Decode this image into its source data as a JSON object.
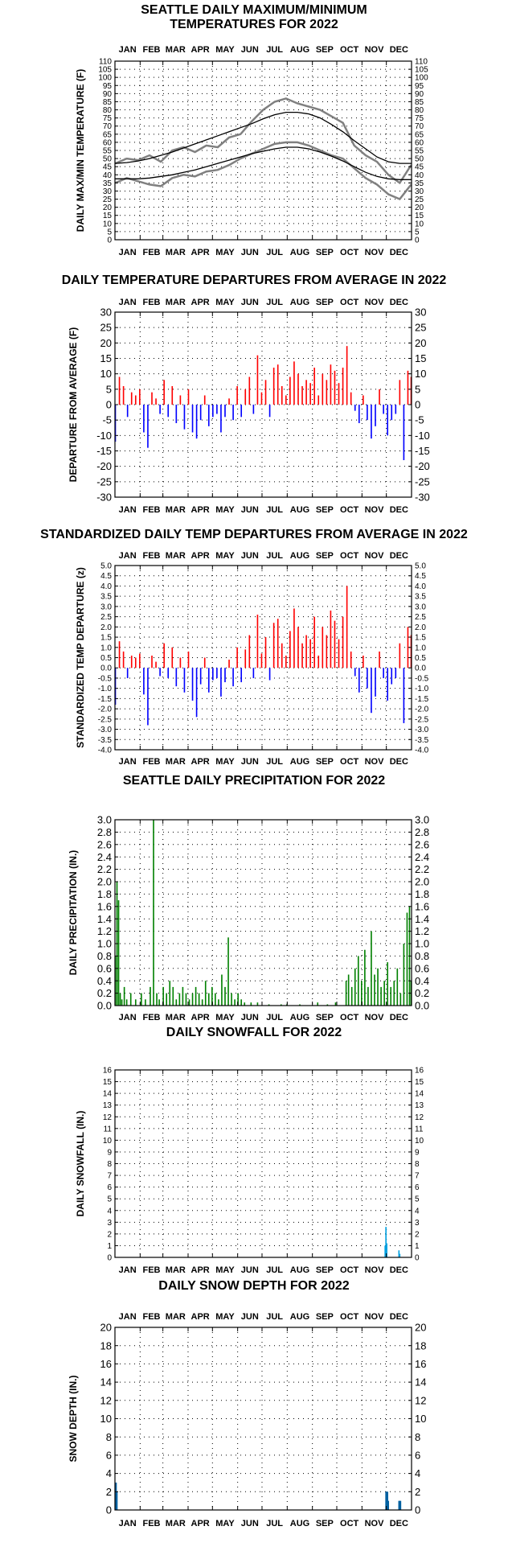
{
  "chart_data": [
    {
      "type": "line",
      "title_lines": [
        "SEATTLE DAILY MAXIMUM/MINIMUM",
        "TEMPERATURES FOR 2022"
      ],
      "ylabel": "DAILY MAX/MIN TEMPERATURE (F)",
      "months": [
        "JAN",
        "FEB",
        "MAR",
        "APR",
        "MAY",
        "JUN",
        "JUL",
        "AUG",
        "SEP",
        "OCT",
        "NOV",
        "DEC"
      ],
      "ylim": [
        0,
        110
      ],
      "yticks": [
        0,
        5,
        10,
        15,
        20,
        25,
        30,
        35,
        40,
        45,
        50,
        55,
        60,
        65,
        70,
        75,
        80,
        85,
        90,
        95,
        100,
        105,
        110
      ],
      "colors": {
        "observed": "#808080",
        "normal": "#000000"
      },
      "series": [
        {
          "role": "observed_max",
          "x": [
            1,
            15,
            29,
            43,
            57,
            71,
            85,
            99,
            113,
            127,
            141,
            155,
            169,
            183,
            197,
            211,
            225,
            239,
            253,
            267,
            281,
            295,
            309,
            323,
            337,
            351,
            365
          ],
          "values": [
            47,
            50,
            49,
            52,
            48,
            55,
            57,
            54,
            58,
            57,
            63,
            65,
            73,
            80,
            85,
            87,
            84,
            82,
            80,
            76,
            72,
            58,
            52,
            48,
            40,
            35,
            46
          ]
        },
        {
          "role": "observed_min",
          "x": [
            1,
            15,
            29,
            43,
            57,
            71,
            85,
            99,
            113,
            127,
            141,
            155,
            169,
            183,
            197,
            211,
            225,
            239,
            253,
            267,
            281,
            295,
            309,
            323,
            337,
            351,
            365
          ],
          "values": [
            35,
            38,
            36,
            34,
            33,
            38,
            40,
            39,
            42,
            43,
            46,
            50,
            53,
            56,
            59,
            60,
            60,
            58,
            55,
            52,
            50,
            44,
            38,
            34,
            28,
            25,
            34
          ]
        },
        {
          "role": "normal_max",
          "x": [
            1,
            15,
            29,
            43,
            57,
            71,
            85,
            99,
            113,
            127,
            141,
            155,
            169,
            183,
            197,
            211,
            225,
            239,
            253,
            267,
            281,
            295,
            309,
            323,
            337,
            351,
            365
          ],
          "values": [
            47,
            47.5,
            48.5,
            50,
            52,
            54,
            56.5,
            59,
            61.5,
            64,
            66.5,
            69,
            71.5,
            74.5,
            77,
            78.5,
            78.5,
            77.5,
            75,
            71,
            66.5,
            61,
            56,
            51,
            48,
            47,
            47
          ]
        },
        {
          "role": "normal_min",
          "x": [
            1,
            15,
            29,
            43,
            57,
            71,
            85,
            99,
            113,
            127,
            141,
            155,
            169,
            183,
            197,
            211,
            225,
            239,
            253,
            267,
            281,
            295,
            309,
            323,
            337,
            351,
            365
          ],
          "values": [
            37.5,
            37.5,
            37.5,
            38,
            39,
            40,
            41.5,
            43,
            45,
            47,
            49,
            51,
            53,
            54.5,
            56,
            57,
            57,
            56,
            54,
            51.5,
            48.5,
            45,
            41.5,
            39,
            37.5,
            37,
            37
          ]
        }
      ]
    },
    {
      "type": "bar",
      "title": "DAILY TEMPERATURE DEPARTURES FROM AVERAGE IN 2022",
      "ylabel": "DEPARTURE FROM AVERAGE (F)",
      "months": [
        "JAN",
        "FEB",
        "MAR",
        "APR",
        "MAY",
        "JUN",
        "JUL",
        "AUG",
        "SEP",
        "OCT",
        "NOV",
        "DEC"
      ],
      "ylim": [
        -30,
        30
      ],
      "yticks": [
        -30,
        -25,
        -20,
        -15,
        -10,
        -5,
        0,
        5,
        10,
        15,
        20,
        25,
        30
      ],
      "colors": {
        "positive": "#ff0000",
        "negative": "#0000ff"
      },
      "x": [
        1,
        6,
        11,
        16,
        21,
        26,
        31,
        36,
        41,
        46,
        51,
        56,
        61,
        66,
        71,
        76,
        81,
        86,
        91,
        96,
        101,
        106,
        111,
        116,
        121,
        126,
        131,
        136,
        141,
        146,
        151,
        156,
        161,
        166,
        171,
        176,
        181,
        186,
        191,
        196,
        201,
        206,
        211,
        216,
        221,
        226,
        231,
        236,
        241,
        246,
        251,
        256,
        261,
        266,
        271,
        276,
        281,
        286,
        291,
        296,
        301,
        306,
        311,
        316,
        321,
        326,
        331,
        336,
        341,
        346,
        351,
        356,
        361,
        365
      ],
      "values": [
        -12,
        9,
        6,
        -4,
        4,
        3,
        5,
        -9,
        -14,
        4,
        2,
        -3,
        8,
        -4,
        6,
        -6,
        3,
        -8,
        5,
        -9,
        -11,
        -5,
        3,
        -7,
        -4,
        -3,
        -9,
        -4,
        2,
        -5,
        6,
        -4,
        5,
        9,
        -3,
        16,
        4,
        8,
        -4,
        12,
        13,
        6,
        3,
        9,
        14,
        10,
        6,
        8,
        7,
        12,
        3,
        10,
        8,
        13,
        11,
        7,
        12,
        19,
        4,
        -2,
        -6,
        3,
        -5,
        -11,
        -7,
        5,
        -3,
        -10,
        -5,
        -3,
        8,
        -18,
        11,
        9
      ]
    },
    {
      "type": "bar",
      "title": "STANDARDIZED DAILY TEMP DEPARTURES FROM AVERAGE IN 2022",
      "ylabel": "STANDARDIZED TEMP DEPARTURE (z)",
      "months": [
        "JAN",
        "FEB",
        "MAR",
        "APR",
        "MAY",
        "JUN",
        "JUL",
        "AUG",
        "SEP",
        "OCT",
        "NOV",
        "DEC"
      ],
      "ylim": [
        -4,
        5
      ],
      "yticks": [
        -4.0,
        -3.5,
        -3.0,
        -2.5,
        -2.0,
        -1.5,
        -1.0,
        -0.5,
        0.0,
        0.5,
        1.0,
        1.5,
        2.0,
        2.5,
        3.0,
        3.5,
        4.0,
        4.5,
        5.0
      ],
      "colors": {
        "positive": "#ff0000",
        "negative": "#0000ff"
      },
      "x": [
        1,
        6,
        11,
        16,
        21,
        26,
        31,
        36,
        41,
        46,
        51,
        56,
        61,
        66,
        71,
        76,
        81,
        86,
        91,
        96,
        101,
        106,
        111,
        116,
        121,
        126,
        131,
        136,
        141,
        146,
        151,
        156,
        161,
        166,
        171,
        176,
        181,
        186,
        191,
        196,
        201,
        206,
        211,
        216,
        221,
        226,
        231,
        236,
        241,
        246,
        251,
        256,
        261,
        266,
        271,
        276,
        281,
        286,
        291,
        296,
        301,
        306,
        311,
        316,
        321,
        326,
        331,
        336,
        341,
        346,
        351,
        356,
        361,
        365
      ],
      "values": [
        -1.8,
        1.3,
        0.8,
        -0.5,
        0.6,
        0.5,
        0.7,
        -1.3,
        -2.8,
        0.6,
        0.3,
        -0.4,
        1.2,
        -0.5,
        1.0,
        -0.9,
        0.5,
        -1.2,
        0.8,
        -1.6,
        -2.4,
        -0.8,
        0.5,
        -1.2,
        -0.6,
        -0.5,
        -1.4,
        -0.7,
        0.4,
        -0.9,
        1.0,
        -0.7,
        0.9,
        1.6,
        -0.5,
        2.6,
        0.7,
        1.5,
        -0.6,
        2.2,
        2.4,
        1.2,
        0.6,
        1.8,
        2.9,
        2.0,
        1.2,
        1.6,
        1.4,
        2.5,
        0.6,
        2.0,
        1.6,
        2.8,
        2.3,
        1.4,
        2.5,
        4.0,
        0.8,
        -0.4,
        -1.2,
        0.6,
        -1.0,
        -2.2,
        -1.4,
        0.8,
        -0.5,
        -1.6,
        -0.8,
        -0.5,
        1.2,
        -2.7,
        2.0,
        1.6
      ]
    },
    {
      "type": "bar",
      "title": "SEATTLE DAILY PRECIPITATION FOR 2022",
      "ylabel": "DAILY PRECIPITATION (IN.)",
      "months": [
        "JAN",
        "FEB",
        "MAR",
        "APR",
        "MAY",
        "JUN",
        "JUL",
        "AUG",
        "SEP",
        "OCT",
        "NOV",
        "DEC"
      ],
      "ylim": [
        0,
        3.0
      ],
      "yticks": [
        0.0,
        0.2,
        0.4,
        0.6,
        0.8,
        1.0,
        1.2,
        1.4,
        1.6,
        1.8,
        2.0,
        2.2,
        2.4,
        2.6,
        2.8,
        3.0
      ],
      "colors": {
        "bars": "#008000"
      },
      "x": [
        1,
        3,
        5,
        7,
        9,
        12,
        15,
        20,
        26,
        33,
        38,
        44,
        48,
        52,
        55,
        60,
        64,
        68,
        72,
        76,
        80,
        84,
        88,
        92,
        96,
        100,
        104,
        108,
        112,
        116,
        120,
        124,
        128,
        132,
        136,
        140,
        144,
        148,
        152,
        156,
        160,
        168,
        176,
        190,
        205,
        212,
        228,
        250,
        262,
        272,
        285,
        288,
        292,
        296,
        300,
        304,
        308,
        312,
        316,
        320,
        324,
        328,
        332,
        336,
        340,
        344,
        348,
        352,
        356,
        360,
        363,
        365
      ],
      "values": [
        0.8,
        2.0,
        1.7,
        0.2,
        0.1,
        0.3,
        0.1,
        0.2,
        0.1,
        0.2,
        0.1,
        0.3,
        3.0,
        0.2,
        0.1,
        0.3,
        0.2,
        0.4,
        0.3,
        0.1,
        0.2,
        0.3,
        0.2,
        0.1,
        0.2,
        0.3,
        0.2,
        0.1,
        0.4,
        0.2,
        0.3,
        0.2,
        0.1,
        0.5,
        0.3,
        1.1,
        0.2,
        0.1,
        0.2,
        0.1,
        0.05,
        0.05,
        0.05,
        0.02,
        0.02,
        0.02,
        0.02,
        0.05,
        0.02,
        0.05,
        0.4,
        0.5,
        0.3,
        0.6,
        0.8,
        0.4,
        0.9,
        0.3,
        1.2,
        0.5,
        0.6,
        0.3,
        0.4,
        0.7,
        0.3,
        0.4,
        0.6,
        0.2,
        1.0,
        1.5,
        1.6,
        0.4
      ]
    },
    {
      "type": "bar",
      "title": "DAILY SNOWFALL FOR 2022",
      "ylabel": "DAILY SNOWFALL (IN.)",
      "months": [
        "JAN",
        "FEB",
        "MAR",
        "APR",
        "MAY",
        "JUN",
        "JUL",
        "AUG",
        "SEP",
        "OCT",
        "NOV",
        "DEC"
      ],
      "ylim": [
        0,
        16
      ],
      "yticks": [
        0,
        1,
        2,
        3,
        4,
        5,
        6,
        7,
        8,
        9,
        10,
        11,
        12,
        13,
        14,
        15,
        16
      ],
      "colors": {
        "bars": "#00a0e0"
      },
      "x": [
        333,
        334,
        335,
        350,
        351
      ],
      "values": [
        1.0,
        2.6,
        1.2,
        0.6,
        0.3
      ]
    },
    {
      "type": "bar",
      "title": "DAILY SNOW DEPTH FOR 2022",
      "ylabel": "SNOW DEPTH (IN.)",
      "months": [
        "JAN",
        "FEB",
        "MAR",
        "APR",
        "MAY",
        "JUN",
        "JUL",
        "AUG",
        "SEP",
        "OCT",
        "NOV",
        "DEC"
      ],
      "ylim": [
        0,
        20
      ],
      "yticks": [
        0,
        2,
        4,
        6,
        8,
        10,
        12,
        14,
        16,
        18,
        20
      ],
      "colors": {
        "bars": "#0060a0"
      },
      "x": [
        1,
        2,
        3,
        334,
        335,
        336,
        337,
        350,
        351,
        352
      ],
      "values": [
        3,
        3,
        2,
        2,
        2,
        2,
        1,
        1,
        1,
        1
      ]
    }
  ]
}
